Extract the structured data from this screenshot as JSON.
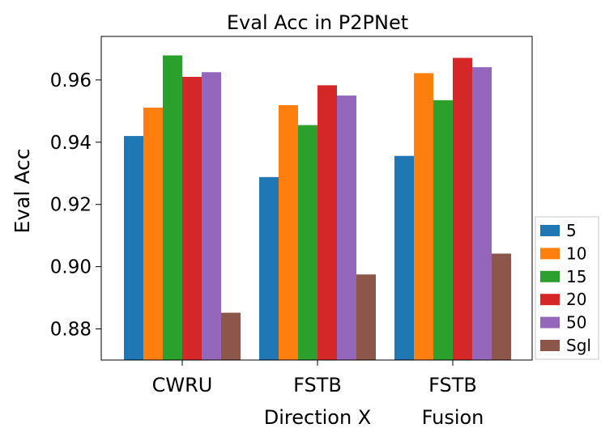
{
  "chart_data": {
    "type": "bar",
    "title": "Eval Acc in P2PNet",
    "xlabel": "",
    "ylabel": "Eval Acc",
    "categories": [
      [
        "CWRU"
      ],
      [
        "FSTB",
        "Direction X"
      ],
      [
        "FSTB",
        "Fusion"
      ]
    ],
    "series": [
      {
        "name": "5",
        "color": "#1f77b4",
        "values": [
          0.942,
          0.9288,
          0.9356
        ]
      },
      {
        "name": "10",
        "color": "#ff7f0e",
        "values": [
          0.9511,
          0.9519,
          0.9622
        ]
      },
      {
        "name": "15",
        "color": "#2ca02c",
        "values": [
          0.9679,
          0.9455,
          0.9535
        ]
      },
      {
        "name": "20",
        "color": "#d62728",
        "values": [
          0.961,
          0.9583,
          0.9671
        ]
      },
      {
        "name": "50",
        "color": "#9467bd",
        "values": [
          0.9625,
          0.955,
          0.9641
        ]
      },
      {
        "name": "Sgl",
        "color": "#8c564b",
        "values": [
          0.8852,
          0.8975,
          0.9042
        ]
      }
    ],
    "ylim": [
      0.87,
      0.974
    ],
    "yticks": [
      0.88,
      0.9,
      0.92,
      0.94,
      0.96
    ],
    "ytick_labels": [
      "0.88",
      "0.90",
      "0.92",
      "0.94",
      "0.96"
    ],
    "grid": false,
    "legend_position": "right"
  }
}
